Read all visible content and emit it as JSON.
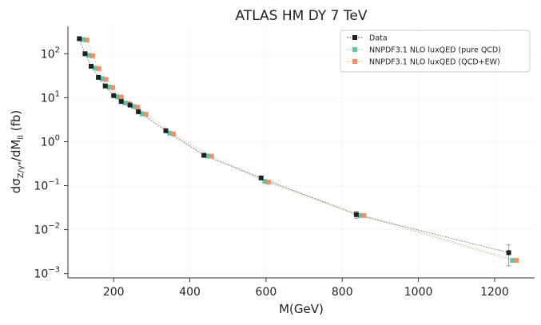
{
  "chart_data": {
    "type": "line",
    "title": "ATLAS HM DY 7 TeV",
    "xlabel": "M(GeV)",
    "ylabel_main": "dσ",
    "ylabel_sub": "Z/γ*",
    "ylabel_mid": "/dM",
    "ylabel_sub2": "ll",
    "ylabel_tail": " (fb)",
    "yscale": "log",
    "xlim": [
      80,
      1305
    ],
    "ylim": [
      0.0008,
      420
    ],
    "x_ticks": [
      200,
      400,
      600,
      800,
      1000,
      1200
    ],
    "x_tick_labels": [
      "200",
      "400",
      "600",
      "800",
      "1000",
      "1200"
    ],
    "y_ticks": [
      0.001,
      0.01,
      0.1,
      1,
      10,
      100
    ],
    "y_tick_base": [
      "10",
      "10",
      "10",
      "10",
      "10",
      "10"
    ],
    "y_tick_exp": [
      "−3",
      "−2",
      "−1",
      "0",
      "1",
      "2"
    ],
    "grid": true,
    "legend_position": "top-right",
    "series": [
      {
        "name": "Data",
        "color": "#222222",
        "marker": "square",
        "x": [
          110,
          125,
          141,
          160,
          178,
          200,
          220,
          243,
          265,
          337,
          437,
          587,
          837,
          1237
        ],
        "y": [
          220,
          100,
          52,
          29,
          18.5,
          11.2,
          8.2,
          6.8,
          4.8,
          1.78,
          0.49,
          0.15,
          0.022,
          0.003
        ],
        "yerr": [
          8,
          4,
          2,
          1,
          0.7,
          0.4,
          0.3,
          0.25,
          0.2,
          0.07,
          0.03,
          0.012,
          0.004,
          0.0015
        ]
      },
      {
        "name": "NNPDF3.1 NLO luxQED (pure QCD)",
        "color": "#66c2a5",
        "marker": "square",
        "x": [
          120,
          135,
          151,
          170,
          188,
          210,
          230,
          253,
          275,
          347,
          447,
          597,
          847,
          1247
        ],
        "y": [
          210,
          92,
          47,
          27,
          17.5,
          10.5,
          7.6,
          6.3,
          4.3,
          1.56,
          0.47,
          0.125,
          0.021,
          0.002
        ]
      },
      {
        "name": "NNPDF3.1 NLO luxQED (QCD+EW)",
        "color": "#fc8d62",
        "marker": "square",
        "x": [
          130,
          145,
          161,
          180,
          198,
          220,
          240,
          263,
          285,
          357,
          457,
          607,
          857,
          1257
        ],
        "y": [
          205,
          90,
          46,
          26,
          17,
          10.3,
          7.4,
          6.1,
          4.2,
          1.5,
          0.47,
          0.12,
          0.021,
          0.002
        ]
      }
    ]
  }
}
